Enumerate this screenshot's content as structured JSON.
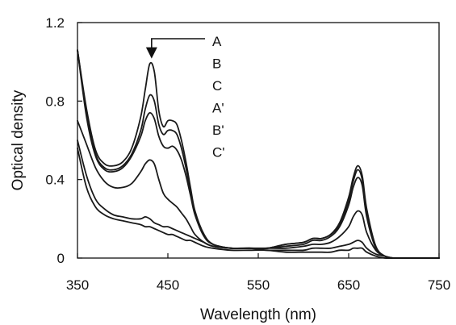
{
  "chart_data": {
    "type": "line",
    "xlabel": "Wavelength (nm)",
    "ylabel": "Optical density",
    "xlim": [
      350,
      750
    ],
    "ylim": [
      0,
      1.2
    ],
    "xticks": [
      350,
      450,
      550,
      650,
      750
    ],
    "yticks": [
      0,
      0.4,
      0.8,
      1.2
    ],
    "xtick_labels": [
      "350",
      "450",
      "550",
      "650",
      "750"
    ],
    "ytick_labels": [
      "0",
      "0.4",
      "0.8",
      "1.2"
    ],
    "grid": false,
    "legend_position": "top-right",
    "annotation_arrow_target": {
      "x": 432,
      "y": 1.0
    },
    "line_color": "#1a1a1a",
    "series": [
      {
        "name": "A",
        "x": [
          350,
          360,
          370,
          380,
          390,
          400,
          410,
          420,
          425,
          430,
          435,
          440,
          445,
          450,
          455,
          460,
          465,
          470,
          475,
          480,
          490,
          500,
          520,
          540,
          560,
          580,
          600,
          610,
          620,
          630,
          640,
          650,
          655,
          660,
          665,
          670,
          680,
          690,
          700,
          720,
          750
        ],
        "y": [
          1.06,
          0.76,
          0.55,
          0.48,
          0.47,
          0.49,
          0.56,
          0.72,
          0.86,
          0.99,
          0.95,
          0.75,
          0.67,
          0.7,
          0.7,
          0.68,
          0.6,
          0.49,
          0.36,
          0.24,
          0.12,
          0.07,
          0.05,
          0.05,
          0.05,
          0.07,
          0.08,
          0.1,
          0.1,
          0.12,
          0.18,
          0.31,
          0.41,
          0.47,
          0.42,
          0.25,
          0.06,
          0.01,
          0.0,
          0.0,
          0.0
        ]
      },
      {
        "name": "B",
        "x": [
          350,
          360,
          370,
          380,
          390,
          400,
          410,
          420,
          425,
          430,
          435,
          440,
          445,
          450,
          455,
          460,
          465,
          470,
          475,
          480,
          490,
          500,
          520,
          540,
          560,
          580,
          600,
          610,
          620,
          630,
          640,
          650,
          655,
          660,
          665,
          670,
          680,
          690,
          700,
          720,
          750
        ],
        "y": [
          1.06,
          0.74,
          0.53,
          0.46,
          0.45,
          0.47,
          0.53,
          0.65,
          0.76,
          0.83,
          0.8,
          0.68,
          0.63,
          0.65,
          0.65,
          0.63,
          0.56,
          0.46,
          0.34,
          0.23,
          0.12,
          0.07,
          0.05,
          0.05,
          0.05,
          0.07,
          0.08,
          0.1,
          0.1,
          0.12,
          0.17,
          0.29,
          0.39,
          0.45,
          0.4,
          0.23,
          0.06,
          0.01,
          0.0,
          0.0,
          0.0
        ]
      },
      {
        "name": "C",
        "x": [
          350,
          360,
          370,
          380,
          390,
          400,
          410,
          420,
          425,
          430,
          435,
          440,
          445,
          450,
          455,
          460,
          465,
          470,
          475,
          480,
          490,
          500,
          520,
          540,
          560,
          580,
          600,
          610,
          620,
          630,
          640,
          650,
          655,
          660,
          665,
          670,
          680,
          690,
          700,
          720,
          750
        ],
        "y": [
          1.06,
          0.72,
          0.52,
          0.45,
          0.44,
          0.46,
          0.52,
          0.62,
          0.7,
          0.74,
          0.71,
          0.62,
          0.57,
          0.56,
          0.57,
          0.55,
          0.5,
          0.42,
          0.32,
          0.22,
          0.11,
          0.07,
          0.05,
          0.05,
          0.05,
          0.06,
          0.07,
          0.09,
          0.09,
          0.11,
          0.16,
          0.27,
          0.36,
          0.41,
          0.37,
          0.21,
          0.05,
          0.01,
          0.0,
          0.0,
          0.0
        ]
      },
      {
        "name": "A'",
        "x": [
          350,
          360,
          370,
          380,
          390,
          400,
          410,
          420,
          425,
          430,
          435,
          440,
          445,
          450,
          455,
          460,
          465,
          470,
          475,
          480,
          490,
          500,
          520,
          540,
          560,
          580,
          600,
          610,
          620,
          630,
          640,
          650,
          655,
          660,
          665,
          670,
          680,
          690,
          700,
          720,
          750
        ],
        "y": [
          0.7,
          0.58,
          0.46,
          0.39,
          0.36,
          0.36,
          0.38,
          0.44,
          0.48,
          0.5,
          0.48,
          0.4,
          0.33,
          0.3,
          0.28,
          0.26,
          0.23,
          0.2,
          0.16,
          0.12,
          0.08,
          0.06,
          0.05,
          0.05,
          0.05,
          0.05,
          0.06,
          0.07,
          0.07,
          0.08,
          0.11,
          0.16,
          0.21,
          0.24,
          0.22,
          0.13,
          0.04,
          0.01,
          0.0,
          0.0,
          0.0
        ]
      },
      {
        "name": "B'",
        "x": [
          350,
          360,
          370,
          380,
          390,
          400,
          410,
          420,
          425,
          430,
          435,
          440,
          445,
          450,
          455,
          460,
          465,
          470,
          475,
          480,
          490,
          500,
          520,
          540,
          560,
          580,
          600,
          610,
          620,
          630,
          640,
          650,
          655,
          660,
          665,
          670,
          680,
          690,
          700,
          720,
          750
        ],
        "y": [
          0.6,
          0.42,
          0.3,
          0.25,
          0.22,
          0.21,
          0.2,
          0.2,
          0.21,
          0.2,
          0.18,
          0.17,
          0.16,
          0.16,
          0.15,
          0.14,
          0.13,
          0.12,
          0.11,
          0.1,
          0.08,
          0.06,
          0.05,
          0.05,
          0.04,
          0.04,
          0.04,
          0.05,
          0.05,
          0.05,
          0.06,
          0.07,
          0.08,
          0.09,
          0.08,
          0.05,
          0.02,
          0.01,
          0.0,
          0.0,
          0.0
        ]
      },
      {
        "name": "C'",
        "x": [
          350,
          360,
          370,
          380,
          390,
          400,
          410,
          420,
          425,
          430,
          435,
          440,
          445,
          450,
          455,
          460,
          465,
          470,
          475,
          480,
          490,
          500,
          520,
          540,
          560,
          580,
          600,
          610,
          620,
          630,
          640,
          650,
          655,
          660,
          665,
          670,
          680,
          690,
          700,
          720,
          750
        ],
        "y": [
          0.56,
          0.36,
          0.26,
          0.22,
          0.2,
          0.19,
          0.18,
          0.17,
          0.16,
          0.16,
          0.15,
          0.14,
          0.13,
          0.12,
          0.12,
          0.11,
          0.1,
          0.09,
          0.09,
          0.08,
          0.06,
          0.05,
          0.04,
          0.04,
          0.04,
          0.03,
          0.03,
          0.03,
          0.03,
          0.03,
          0.04,
          0.04,
          0.05,
          0.05,
          0.05,
          0.03,
          0.01,
          0.0,
          0.0,
          0.0,
          0.0
        ]
      }
    ]
  }
}
